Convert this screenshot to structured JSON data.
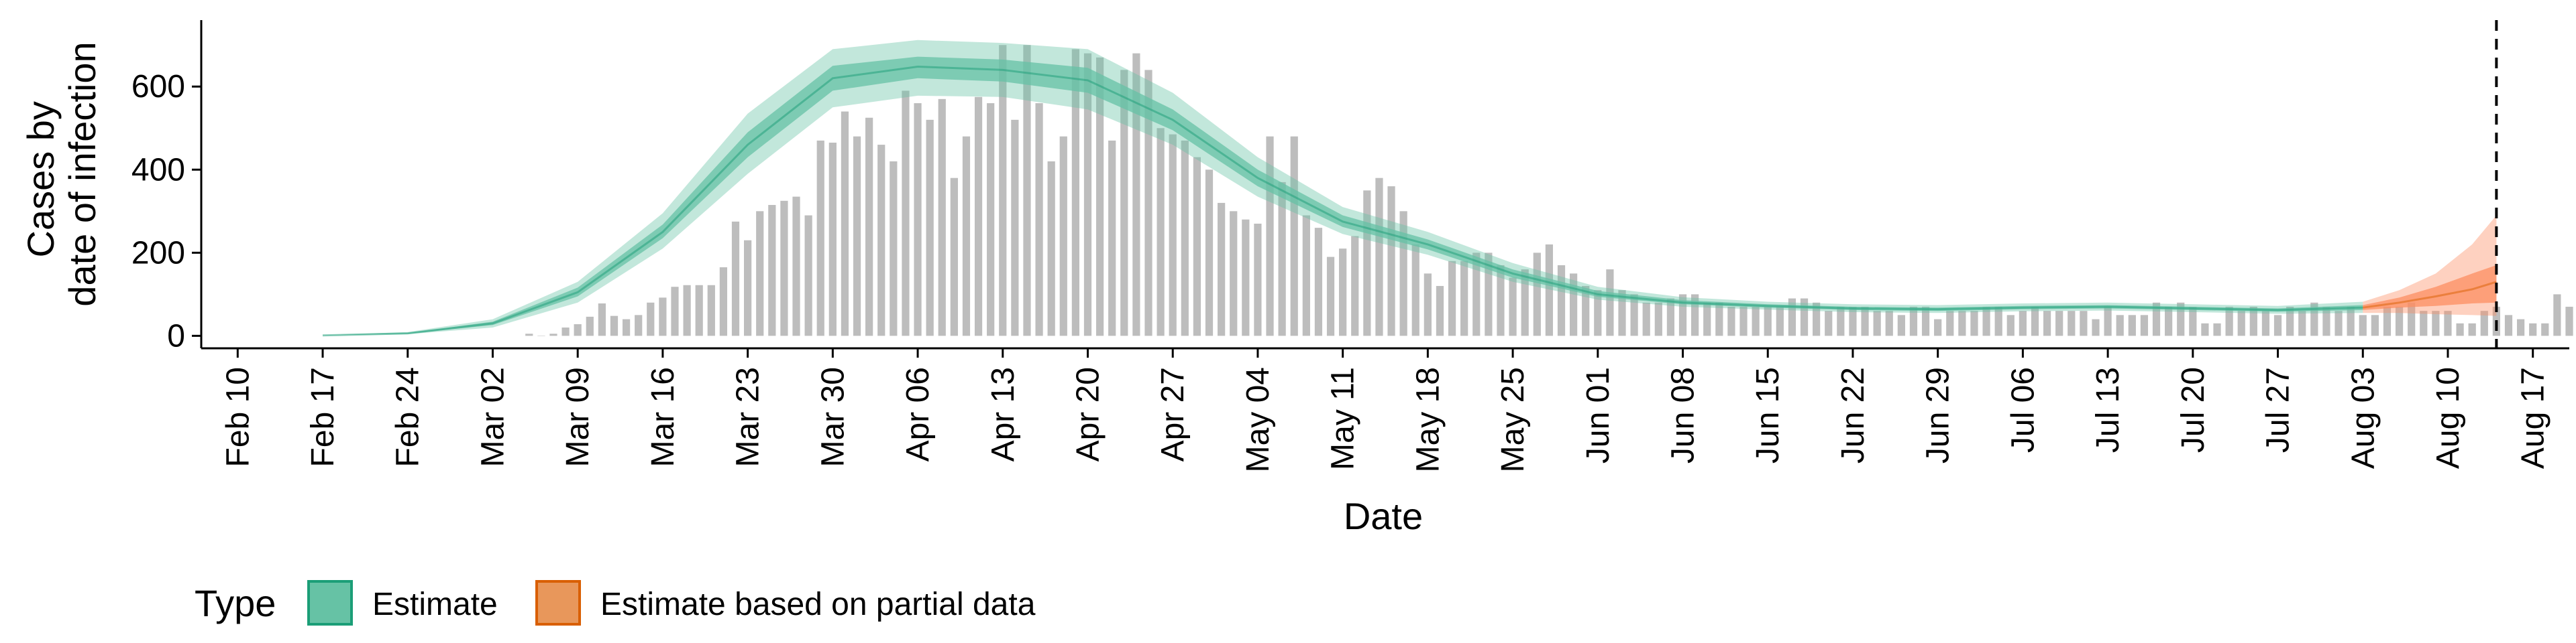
{
  "chart_data": {
    "type": "bar",
    "title": "",
    "xlabel": "Date",
    "ylabel_lines": [
      "Cases by",
      "date of infection"
    ],
    "ylim": [
      -30,
      760
    ],
    "yticks": [
      0,
      200,
      400,
      600
    ],
    "xlim": [
      "2020-02-07",
      "2020-08-20"
    ],
    "x_tick_dates": [
      "2020-02-10",
      "2020-02-17",
      "2020-02-24",
      "2020-03-02",
      "2020-03-09",
      "2020-03-16",
      "2020-03-23",
      "2020-03-30",
      "2020-04-06",
      "2020-04-13",
      "2020-04-20",
      "2020-04-27",
      "2020-05-04",
      "2020-05-11",
      "2020-05-18",
      "2020-05-25",
      "2020-06-01",
      "2020-06-08",
      "2020-06-15",
      "2020-06-22",
      "2020-06-29",
      "2020-07-06",
      "2020-07-13",
      "2020-07-20",
      "2020-07-27",
      "2020-08-03",
      "2020-08-10",
      "2020-08-17"
    ],
    "x_tick_labels": [
      "Feb 10",
      "Feb 17",
      "Feb 24",
      "Mar 02",
      "Mar 09",
      "Mar 16",
      "Mar 23",
      "Mar 30",
      "Apr 06",
      "Apr 13",
      "Apr 20",
      "Apr 27",
      "May 04",
      "May 11",
      "May 18",
      "May 25",
      "Jun 01",
      "Jun 08",
      "Jun 15",
      "Jun 22",
      "Jun 29",
      "Jul 06",
      "Jul 13",
      "Jul 20",
      "Jul 27",
      "Aug 03",
      "Aug 10",
      "Aug 17"
    ],
    "vline_date": "2020-08-14",
    "grid": false,
    "bars": {
      "color": "#bdbdbd",
      "start_date": "2020-03-05",
      "values": [
        5,
        0,
        5,
        20,
        28,
        46,
        78,
        48,
        40,
        50,
        80,
        92,
        118,
        122,
        122,
        122,
        165,
        275,
        230,
        300,
        315,
        325,
        335,
        290,
        470,
        465,
        540,
        480,
        525,
        460,
        420,
        590,
        560,
        520,
        570,
        380,
        480,
        575,
        560,
        700,
        520,
        700,
        560,
        420,
        480,
        690,
        680,
        670,
        470,
        640,
        680,
        640,
        500,
        485,
        470,
        430,
        400,
        320,
        300,
        280,
        270,
        480,
        370,
        480,
        290,
        260,
        190,
        210,
        240,
        350,
        380,
        360,
        300,
        220,
        150,
        120,
        180,
        180,
        200,
        200,
        170,
        140,
        160,
        200,
        220,
        170,
        150,
        120,
        110,
        160,
        110,
        100,
        80,
        80,
        90,
        100,
        100,
        80,
        80,
        70,
        70,
        70,
        70,
        70,
        90,
        90,
        80,
        60,
        70,
        70,
        70,
        60,
        60,
        50,
        70,
        70,
        40,
        60,
        60,
        60,
        70,
        70,
        50,
        60,
        70,
        60,
        60,
        60,
        60,
        40,
        70,
        50,
        50,
        50,
        80,
        70,
        80,
        70,
        30,
        30,
        70,
        60,
        70,
        60,
        50,
        70,
        60,
        80,
        70,
        60,
        70,
        50,
        50,
        70,
        70,
        80,
        60,
        60,
        60,
        30,
        30,
        60,
        70,
        50,
        40,
        30,
        30,
        100,
        70,
        70,
        60,
        70,
        60
      ]
    },
    "series": [
      {
        "name": "Estimate",
        "color": "#1b9e77",
        "fill_color": "#66c2a5",
        "x": [
          "2020-02-17",
          "2020-02-24",
          "2020-03-02",
          "2020-03-09",
          "2020-03-16",
          "2020-03-23",
          "2020-03-30",
          "2020-04-06",
          "2020-04-13",
          "2020-04-20",
          "2020-04-27",
          "2020-05-04",
          "2020-05-11",
          "2020-05-18",
          "2020-05-25",
          "2020-06-01",
          "2020-06-08",
          "2020-06-15",
          "2020-06-22",
          "2020-06-29",
          "2020-07-06",
          "2020-07-13",
          "2020-07-20",
          "2020-07-27",
          "2020-08-03"
        ],
        "median": [
          1,
          6,
          30,
          105,
          250,
          460,
          620,
          648,
          640,
          615,
          520,
          380,
          275,
          220,
          150,
          100,
          80,
          72,
          66,
          64,
          68,
          70,
          66,
          62,
          68
        ],
        "inner_lower": [
          1,
          5,
          26,
          95,
          235,
          430,
          590,
          620,
          612,
          585,
          495,
          360,
          262,
          208,
          140,
          94,
          76,
          68,
          62,
          60,
          64,
          66,
          62,
          58,
          62
        ],
        "inner_upper": [
          1,
          7,
          34,
          116,
          268,
          490,
          650,
          672,
          665,
          645,
          545,
          400,
          290,
          232,
          160,
          108,
          86,
          76,
          70,
          68,
          72,
          74,
          70,
          66,
          74
        ],
        "outer_lower": [
          1,
          4,
          20,
          80,
          210,
          390,
          550,
          578,
          575,
          545,
          460,
          335,
          245,
          195,
          130,
          87,
          70,
          63,
          57,
          55,
          59,
          61,
          57,
          53,
          55
        ],
        "outer_upper": [
          2,
          9,
          40,
          130,
          295,
          535,
          690,
          712,
          705,
          690,
          585,
          430,
          310,
          250,
          175,
          118,
          93,
          82,
          76,
          74,
          78,
          80,
          76,
          72,
          82
        ]
      },
      {
        "name": "Estimate based on partial data",
        "color": "#d95f02",
        "fill_color": "#fc8d62",
        "x": [
          "2020-08-03",
          "2020-08-06",
          "2020-08-09",
          "2020-08-12",
          "2020-08-14"
        ],
        "median": [
          68,
          80,
          95,
          112,
          130
        ],
        "inner_lower": [
          62,
          68,
          72,
          78,
          80
        ],
        "inner_upper": [
          74,
          92,
          118,
          150,
          170
        ],
        "outer_lower": [
          55,
          55,
          52,
          50,
          48
        ],
        "outer_upper": [
          82,
          110,
          150,
          220,
          290
        ]
      }
    ],
    "legend": {
      "title": "Type",
      "position": "bottom-left",
      "items": [
        "Estimate",
        "Estimate based on partial data"
      ]
    }
  }
}
